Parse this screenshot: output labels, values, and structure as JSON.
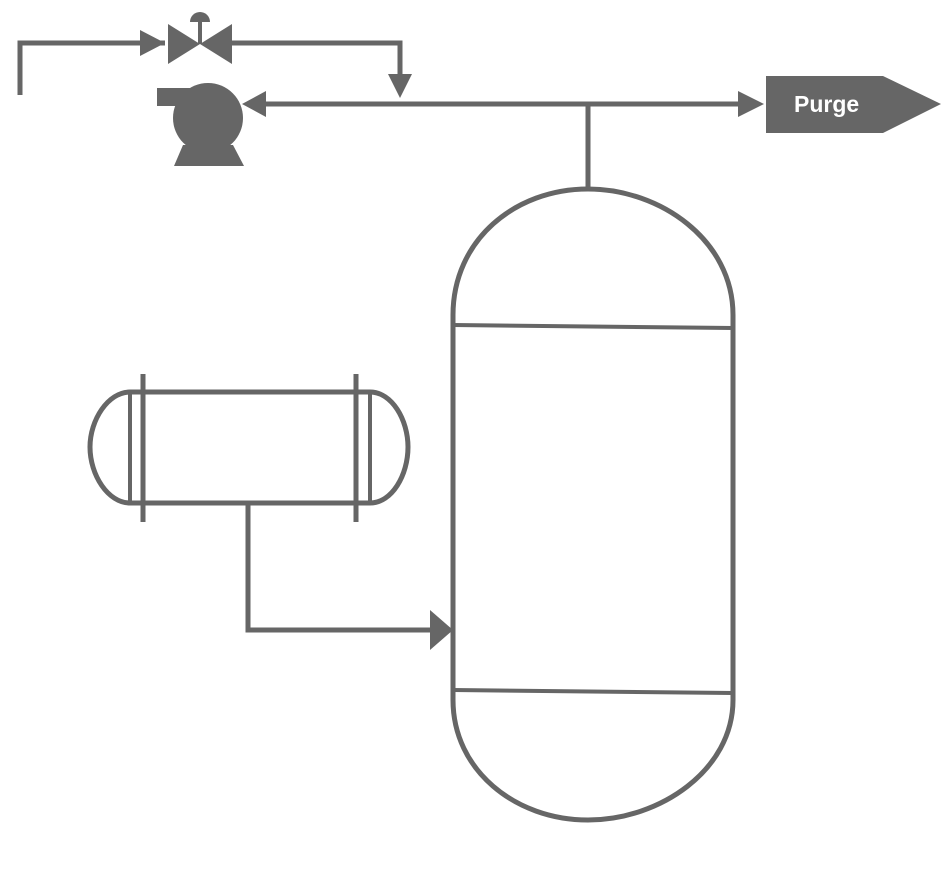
{
  "colors": {
    "stroke": "#666666",
    "fill_dark": "#666666",
    "background": "#ffffff",
    "label_text": "#ffffff"
  },
  "diagram": {
    "type": "process-flow",
    "purge": {
      "label": "Purge",
      "shape": "pentagon-arrow",
      "icon": "offpage-connector"
    },
    "equipment": [
      {
        "name": "control-valve",
        "icon": "valve-with-actuator-icon"
      },
      {
        "name": "centrifugal-pump",
        "icon": "pump-icon"
      },
      {
        "name": "vertical-vessel",
        "icon": "column-vessel"
      },
      {
        "name": "horizontal-heat-exchanger",
        "icon": "exchanger-icon"
      }
    ],
    "connections": [
      {
        "from": "feed-inlet",
        "to": "control-valve"
      },
      {
        "from": "control-valve",
        "to": "recycle-header"
      },
      {
        "from": "recycle-header",
        "to": "centrifugal-pump"
      },
      {
        "from": "recycle-header",
        "to": "purge"
      },
      {
        "from": "vertical-vessel",
        "to": "recycle-header"
      },
      {
        "from": "horizontal-heat-exchanger",
        "to": "vertical-vessel"
      }
    ]
  }
}
